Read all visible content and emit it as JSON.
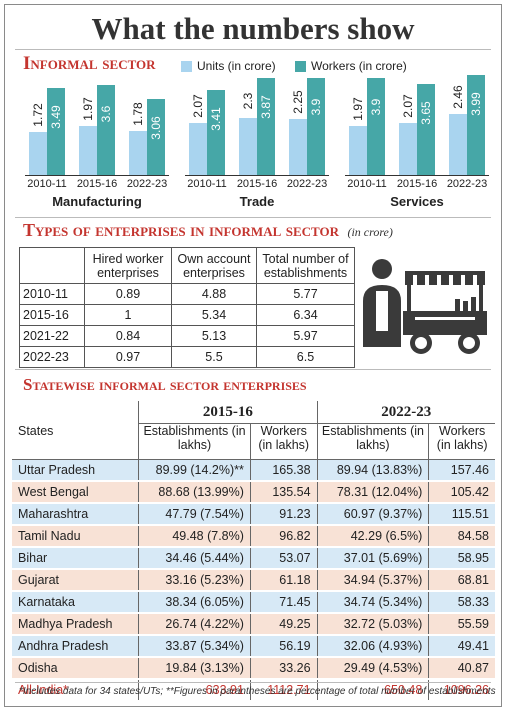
{
  "title": "What the numbers show",
  "informal_sector": {
    "heading": "Informal sector",
    "legend_units": "Units (in crore)",
    "legend_workers": "Workers (in crore)",
    "colors": {
      "units": "#a9d4ef",
      "workers": "#46a7a7",
      "accent": "#c4352f"
    }
  },
  "chart_data": {
    "type": "bar",
    "groups": [
      "Manufacturing",
      "Trade",
      "Services"
    ],
    "categories": [
      "2010-11",
      "2015-16",
      "2022-23"
    ],
    "series": [
      {
        "name": "Units (in crore)",
        "values": [
          [
            1.72,
            1.97,
            1.78
          ],
          [
            2.07,
            2.3,
            2.25
          ],
          [
            1.97,
            2.07,
            2.46
          ]
        ]
      },
      {
        "name": "Workers (in crore)",
        "values": [
          [
            3.49,
            3.6,
            3.06
          ],
          [
            3.41,
            3.87,
            3.9
          ],
          [
            3.9,
            3.65,
            3.99
          ]
        ]
      }
    ],
    "value_labels": {
      "units": [
        [
          "1.72",
          "1.97",
          "1.78"
        ],
        [
          "2.07",
          "2.3",
          "2.25"
        ],
        [
          "1.97",
          "2.07",
          "2.46"
        ]
      ],
      "workers": [
        [
          "3.49",
          "3.6",
          "3.06"
        ],
        [
          "3.41",
          "3.87",
          "3.9"
        ],
        [
          "3.9",
          "3.65",
          "3.99"
        ]
      ]
    },
    "ylim": [
      0,
      4
    ]
  },
  "types_table": {
    "heading": "Types of enterprises in informal sector",
    "unit_note": "(in crore)",
    "columns": [
      "",
      "Hired worker enterprises",
      "Own account enterprises",
      "Total number of establishments"
    ],
    "rows": [
      [
        "2010-11",
        "0.89",
        "4.88",
        "5.77"
      ],
      [
        "2015-16",
        "1",
        "5.34",
        "6.34"
      ],
      [
        "2021-22",
        "0.84",
        "5.13",
        "5.97"
      ],
      [
        "2022-23",
        "0.97",
        "5.5",
        "6.5"
      ]
    ]
  },
  "statewise": {
    "heading": "Statewise informal sector enterprises",
    "period1": "2015-16",
    "period2": "2022-23",
    "col_states": "States",
    "col_est": "Establishments (in lakhs)",
    "col_workers": "Workers (in lakhs)",
    "rows": [
      [
        "Uttar Pradesh",
        "89.99 (14.2%)**",
        "165.38",
        "89.94 (13.83%)",
        "157.46"
      ],
      [
        "West Bengal",
        "88.68 (13.99%)",
        "135.54",
        "78.31 (12.04%)",
        "105.42"
      ],
      [
        "Maharashtra",
        "47.79 (7.54%)",
        "91.23",
        "60.97 (9.37%)",
        "115.51"
      ],
      [
        "Tamil Nadu",
        "49.48 (7.8%)",
        "96.82",
        "42.29 (6.5%)",
        "84.58"
      ],
      [
        "Bihar",
        "34.46 (5.44%)",
        "53.07",
        "37.01 (5.69%)",
        "58.95"
      ],
      [
        "Gujarat",
        "33.16 (5.23%)",
        "61.18",
        "34.94 (5.37%)",
        "68.81"
      ],
      [
        "Karnataka",
        "38.34 (6.05%)",
        "71.45",
        "34.74 (5.34%)",
        "58.33"
      ],
      [
        "Madhya Pradesh",
        "26.74 (4.22%)",
        "49.25",
        "32.72 (5.03%)",
        "55.59"
      ],
      [
        "Andhra Pradesh",
        "33.87 (5.34%)",
        "56.19",
        "32.06 (4.93%)",
        "49.41"
      ],
      [
        "Odisha",
        "19.84 (3.13%)",
        "33.26",
        "29.49 (4.53%)",
        "40.87"
      ]
    ],
    "total": [
      "All-India*",
      "633.91",
      "1112.71",
      "650.48",
      "1096.26"
    ]
  },
  "footnote": "*Includes data for 34 states/UTs; **Figures in parantheses are percentage of total number of establishments"
}
